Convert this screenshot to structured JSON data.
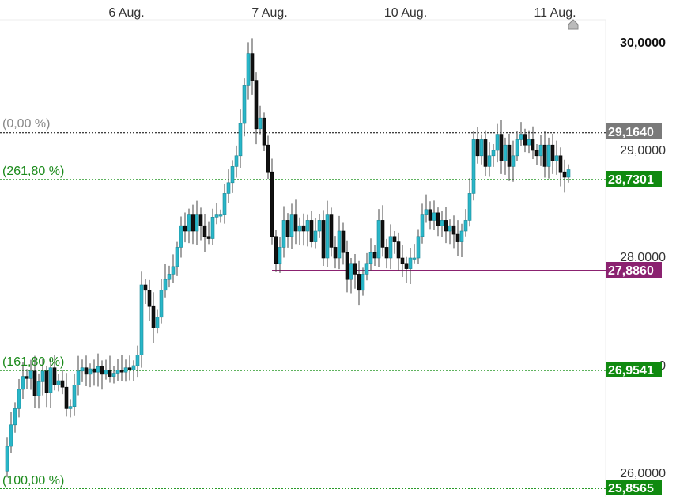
{
  "chart_data": {
    "type": "candlestick",
    "x_labels": [
      "6 Aug.",
      "7 Aug.",
      "10 Aug.",
      "11 Aug."
    ],
    "y_axis": {
      "ticks": [
        "30,0000",
        "29,0000",
        "28,0000",
        "0",
        "26,0000"
      ],
      "ylim": [
        25.82,
        30.3
      ]
    },
    "current_price": "29,1640",
    "levels": [
      {
        "name": "0-percent",
        "label": "(0,00 %)",
        "tag": "29,1640",
        "value": 29.164,
        "color": "#777777",
        "line": "#000000",
        "style": "dotted"
      },
      {
        "name": "261-80-percent",
        "label": "(261,80 %)",
        "tag": "28,7301",
        "value": 28.7301,
        "color": "#1a8a1a",
        "line": "#2a9a2a",
        "style": "dotted"
      },
      {
        "name": "support-line",
        "label": "",
        "tag": "27,8860",
        "value": 27.886,
        "color": "#8b2270",
        "line": "#8b2270",
        "style": "solid"
      },
      {
        "name": "161-80-percent",
        "label": "(161,80 %)",
        "tag": "26,9541",
        "value": 26.9541,
        "color": "#1a8a1a",
        "line": "#2a9a2a",
        "style": "dotted"
      },
      {
        "name": "100-percent",
        "label": "(100,00 %)",
        "tag": "25,8565",
        "value": 25.8565,
        "color": "#1a8a1a",
        "line": "#2a9a2a",
        "style": "dotted"
      }
    ],
    "colors": {
      "up": "#29b6c8",
      "down": "#111111",
      "tag_green": "#108a10",
      "tag_gray": "#7a7a7a",
      "tag_purple": "#8b2270"
    }
  }
}
